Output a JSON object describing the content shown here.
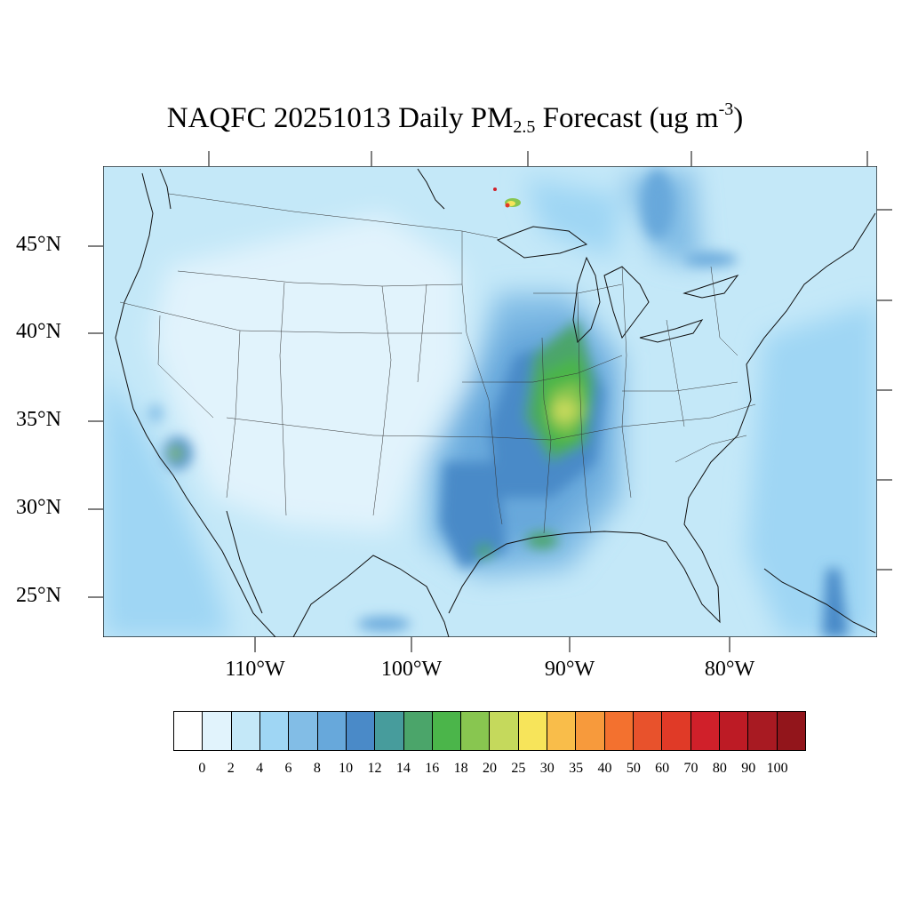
{
  "title": {
    "prefix": "NAQFC 20251013 Daily PM",
    "subscript": "2.5",
    "middle": " Forecast (ug m",
    "superscript": "-3",
    "suffix": ")"
  },
  "map": {
    "projection": "Lambert conformal, CONUS",
    "latitude_labels": [
      "45°N",
      "40°N",
      "35°N",
      "30°N",
      "25°N"
    ],
    "longitude_labels": [
      "110°W",
      "100°W",
      "90°W",
      "80°W"
    ],
    "boundaries": [
      "coastlines",
      "state borders",
      "international borders"
    ],
    "pm25_hotspots": [
      {
        "region": "Mississippi River valley (IL / KY / TN / AR)",
        "level": "18–30"
      },
      {
        "region": "Southern California",
        "level": "16–20"
      },
      {
        "region": "Louisiana Gulf coast",
        "level": "18–25"
      },
      {
        "region": "Upper Peninsula / Lake Superior (fire)",
        "level": "30–100"
      },
      {
        "region": "Texas Gulf coast",
        "level": "12–20"
      }
    ]
  },
  "colorbar": {
    "labels": [
      "0",
      "2",
      "4",
      "6",
      "8",
      "10",
      "12",
      "14",
      "16",
      "18",
      "20",
      "25",
      "30",
      "35",
      "40",
      "50",
      "60",
      "70",
      "80",
      "90",
      "100"
    ],
    "colors": [
      "#ffffff",
      "#e1f3fc",
      "#c4e8f8",
      "#9fd6f4",
      "#82bde6",
      "#67a8db",
      "#4a8ac8",
      "#479c9c",
      "#4ba56a",
      "#4bb54a",
      "#88c650",
      "#c5d95c",
      "#f7e45a",
      "#f9bd4a",
      "#f79a3c",
      "#f3712f",
      "#e8522c",
      "#e03a27",
      "#d0202a",
      "#bd1b25",
      "#a81a22",
      "#92151b"
    ]
  }
}
